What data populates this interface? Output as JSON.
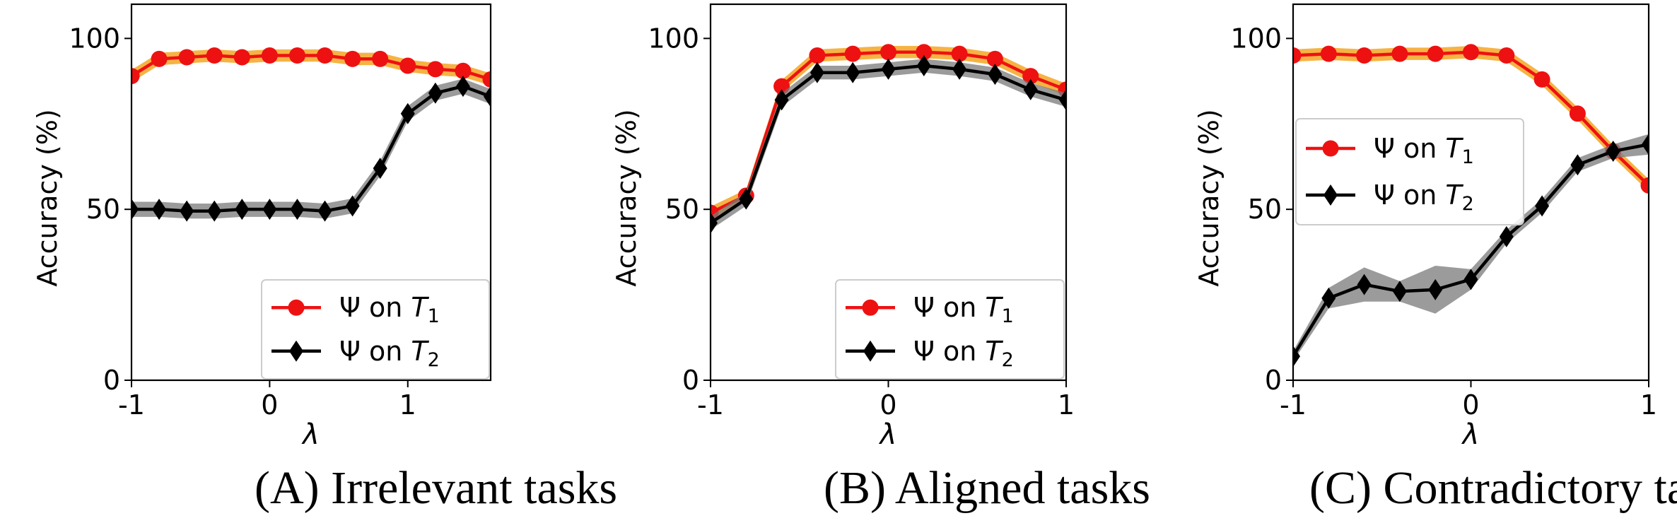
{
  "colors": {
    "t1_line": "#ee1111",
    "t1_band": "#f5a623",
    "t2_line": "#000000",
    "t2_band": "#7a7a7a"
  },
  "chart_data": [
    {
      "type": "line",
      "caption": "(A) Irrelevant tasks",
      "xlabel": "λ",
      "ylabel": "Accuracy (%)",
      "xlim": [
        -1,
        1.6
      ],
      "ylim": [
        0,
        110
      ],
      "xticks": [
        "-1",
        "0",
        "1"
      ],
      "yticks": [
        "0",
        "50",
        "100"
      ],
      "legend": "bottom-right",
      "series": [
        {
          "name": "Ψ on T1",
          "sub": "1",
          "marker": "circle",
          "x": [
            -1,
            -0.8,
            -0.6,
            -0.4,
            -0.2,
            0,
            0.2,
            0.4,
            0.6,
            0.8,
            1.0,
            1.2,
            1.4,
            1.6
          ],
          "y": [
            89,
            94,
            94.5,
            95,
            94.5,
            95,
            95,
            95,
            94,
            94,
            92,
            91,
            90.5,
            88
          ],
          "band": 1.8
        },
        {
          "name": "Ψ on T2",
          "sub": "2",
          "marker": "diamond",
          "x": [
            -1,
            -0.8,
            -0.6,
            -0.4,
            -0.2,
            0,
            0.2,
            0.4,
            0.6,
            0.8,
            1.0,
            1.2,
            1.4,
            1.6
          ],
          "y": [
            50,
            50,
            49.5,
            49.5,
            50,
            50,
            50,
            49.5,
            51,
            62,
            78,
            84,
            86,
            83
          ],
          "band": 2.2
        }
      ]
    },
    {
      "type": "line",
      "caption": "(B) Aligned tasks",
      "xlabel": "λ",
      "ylabel": "Accuracy (%)",
      "xlim": [
        -1,
        1
      ],
      "ylim": [
        0,
        110
      ],
      "xticks": [
        "-1",
        "0",
        "1"
      ],
      "yticks": [
        "0",
        "50",
        "100"
      ],
      "legend": "bottom-right",
      "series": [
        {
          "name": "Ψ on T1",
          "sub": "1",
          "marker": "circle",
          "x": [
            -1,
            -0.8,
            -0.6,
            -0.4,
            -0.2,
            0,
            0.2,
            0.4,
            0.6,
            0.8,
            1.0
          ],
          "y": [
            49,
            54,
            86,
            95,
            95.5,
            96,
            96,
            95.5,
            94,
            89,
            85
          ],
          "band": 1.8
        },
        {
          "name": "Ψ on T2",
          "sub": "2",
          "marker": "diamond",
          "x": [
            -1,
            -0.8,
            -0.6,
            -0.4,
            -0.2,
            0,
            0.2,
            0.4,
            0.6,
            0.8,
            1.0
          ],
          "y": [
            46,
            53,
            82,
            90,
            90,
            91,
            92,
            91,
            89.5,
            85,
            82
          ],
          "band": 2.0
        }
      ]
    },
    {
      "type": "line",
      "caption": "(C) Contradictory tasks",
      "xlabel": "λ",
      "ylabel": "Accuracy (%)",
      "xlim": [
        -1,
        1
      ],
      "ylim": [
        0,
        110
      ],
      "xticks": [
        "-1",
        "0",
        "1"
      ],
      "yticks": [
        "0",
        "50",
        "100"
      ],
      "legend": "upper-left",
      "series": [
        {
          "name": "Ψ on T1",
          "sub": "1",
          "marker": "circle",
          "x": [
            -1,
            -0.8,
            -0.6,
            -0.4,
            -0.2,
            0,
            0.2,
            0.4,
            0.6,
            0.8,
            1.0
          ],
          "y": [
            95,
            95.5,
            95,
            95.5,
            95.5,
            96,
            95,
            88,
            78,
            67,
            57
          ],
          "band": 1.8
        },
        {
          "name": "Ψ on T2",
          "sub": "2",
          "marker": "diamond",
          "x": [
            -1,
            -0.8,
            -0.6,
            -0.4,
            -0.2,
            0,
            0.2,
            0.4,
            0.6,
            0.8,
            1.0
          ],
          "y": [
            7,
            24,
            28,
            26,
            26.5,
            29.5,
            42,
            51,
            63,
            67,
            69
          ],
          "band": [
            1.5,
            3,
            5,
            3,
            7,
            3,
            2,
            2,
            2,
            2,
            3
          ]
        }
      ]
    }
  ]
}
